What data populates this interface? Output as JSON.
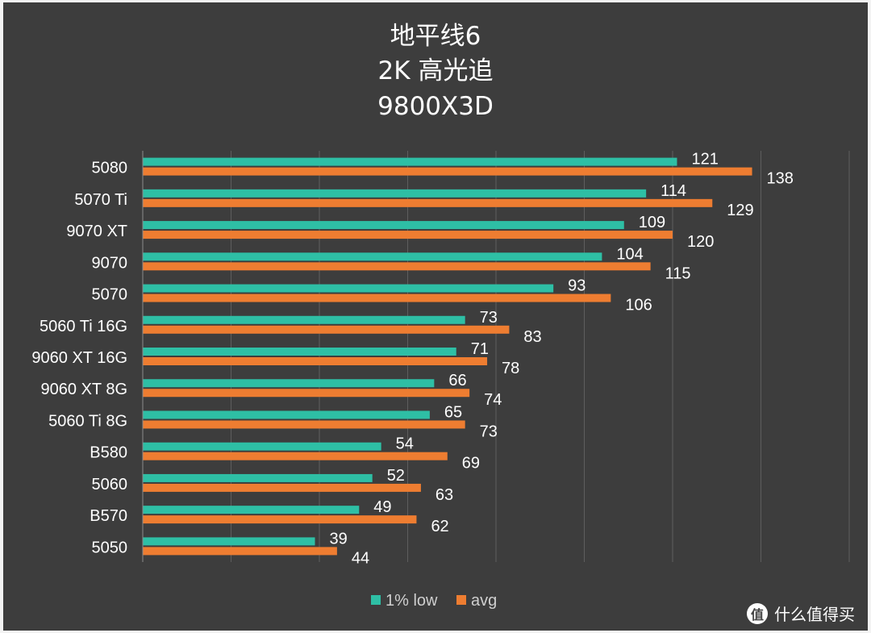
{
  "chart_data": {
    "type": "bar",
    "orientation": "horizontal",
    "title": [
      "地平线6",
      "2K 高光追",
      "9800X3D"
    ],
    "categories": [
      "5080",
      "5070 Ti",
      "9070 XT",
      "9070",
      "5070",
      "5060 Ti 16G",
      "9060 XT 16G",
      "9060 XT 8G",
      "5060 Ti 8G",
      "B580",
      "5060",
      "B570",
      "5050"
    ],
    "series": [
      {
        "name": "1% low",
        "color": "#2ebfa5",
        "values": [
          121,
          114,
          109,
          104,
          93,
          73,
          71,
          66,
          65,
          54,
          52,
          49,
          39
        ]
      },
      {
        "name": "avg",
        "color": "#ee7d31",
        "values": [
          138,
          129,
          120,
          115,
          106,
          83,
          78,
          74,
          73,
          69,
          63,
          62,
          44
        ]
      }
    ],
    "xlim": [
      0,
      160
    ],
    "grid": true,
    "legend_position": "bottom",
    "background": "#3d3d3d"
  },
  "watermark": {
    "badge": "值",
    "text": "什么值得买"
  }
}
